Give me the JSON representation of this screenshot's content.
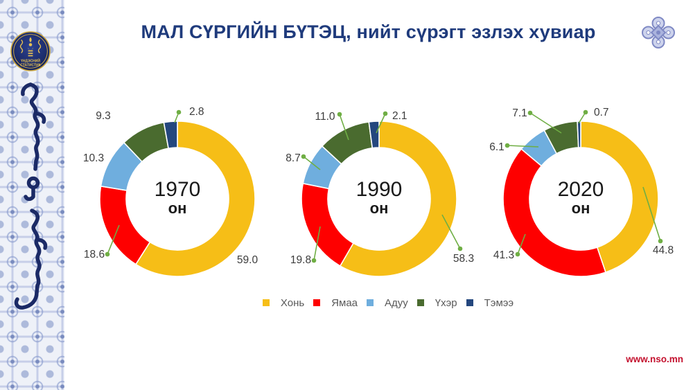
{
  "header": {
    "title": "МАЛ СҮРГИЙН БҮТЭЦ, нийт сүрэгт эзлэх хувиар"
  },
  "sidebar": {
    "logo_text_line1": "ҮНДЭСНИЙ",
    "logo_text_line2": "СТАТИСТИК"
  },
  "footer": {
    "website": "www.nso.mn"
  },
  "colors": {
    "title_blue": "#1F3B7C",
    "leader_line_green": "#6FAE44",
    "data_label_gray": "#3C3C3C",
    "legend_text_gray": "#595959",
    "website_red": "#C4122F"
  },
  "chart_data": {
    "type": "pie",
    "subtype": "donut",
    "title": "МАЛ СҮРГИЙН БҮТЭЦ, нийт сүрэгт эзлэх хувиар",
    "unit": "%",
    "legend_position": "bottom",
    "categories": [
      "Хонь",
      "Ямаа",
      "Адуу",
      "Үхэр",
      "Тэмээ"
    ],
    "colors": [
      "#F6BE17",
      "#FE0000",
      "#6FAEDE",
      "#4A6B2F",
      "#24477E"
    ],
    "charts": [
      {
        "center_label": "1970",
        "center_sublabel": "он",
        "values": [
          59.0,
          18.6,
          10.3,
          9.3,
          2.8
        ]
      },
      {
        "center_label": "1990",
        "center_sublabel": "он",
        "values": [
          58.3,
          19.8,
          8.7,
          11.0,
          2.1
        ]
      },
      {
        "center_label": "2020",
        "center_sublabel": "он",
        "values": [
          44.8,
          41.3,
          6.1,
          7.1,
          0.7
        ]
      }
    ]
  }
}
